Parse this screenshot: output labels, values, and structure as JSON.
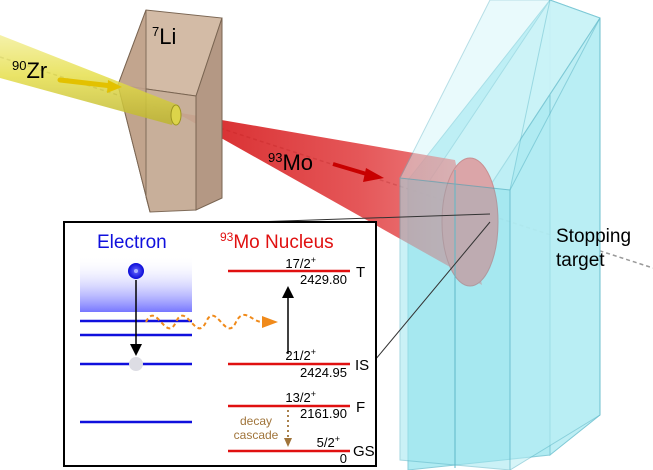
{
  "beam": {
    "projectile_mass": "90",
    "projectile_symbol": "Zr",
    "target_mass": "7",
    "target_symbol": "Li",
    "product_mass": "93",
    "product_symbol": "Mo"
  },
  "stopping_target": {
    "line1": "Stopping",
    "line2": "target"
  },
  "inset": {
    "electron_title": "Electron",
    "nucleus_mass": "93",
    "nucleus_title": "Mo Nucleus",
    "levels": [
      {
        "spin": "17/2",
        "parity": "+",
        "energy": "2429.80",
        "tag": "T"
      },
      {
        "spin": "21/2",
        "parity": "+",
        "energy": "2424.95",
        "tag": "IS"
      },
      {
        "spin": "13/2",
        "parity": "+",
        "energy": "2161.90",
        "tag": "F"
      },
      {
        "spin": "5/2",
        "parity": "+",
        "energy": "0",
        "tag": "GS"
      }
    ],
    "decay_line1": "decay",
    "decay_line2": "cascade"
  },
  "colors": {
    "beam_yellow": "#e6e05a",
    "li_target": "#b89a80",
    "cone_red": "#e0282a",
    "stopper_cyan": "#9fe6ef",
    "electron_blue": "#1010dd",
    "nuclear_red": "#e01010",
    "orange_wave": "#f08a1a",
    "cascade_brown": "#a0743a"
  },
  "icons": {
    "electron": "blue-electron-dot",
    "hole": "gray-vacancy-dot"
  }
}
